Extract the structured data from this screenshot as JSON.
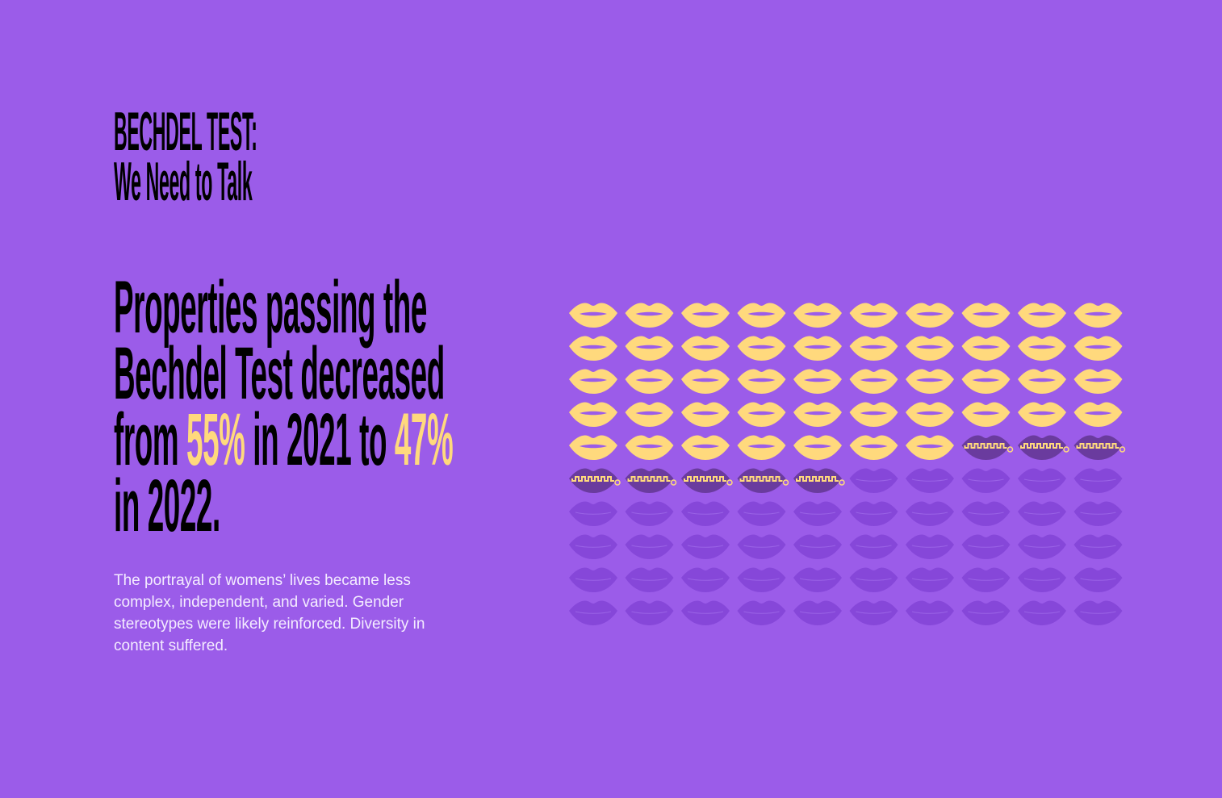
{
  "title": {
    "line1": "BECHDEL TEST:",
    "line2": "We Need to Talk"
  },
  "headline": {
    "line1": "Properties passing the",
    "line2": "Bechdel Test decreased",
    "line3_a": "from ",
    "line3_pct1": "55%",
    "line3_b": " in 2021 to ",
    "line3_pct2": "47%",
    "line4": "in 2022."
  },
  "body": "The portrayal of womens’ lives became less complex, independent, and varied. Gender stereotypes were likely reinforced. Diversity in content suffered.",
  "colors": {
    "background": "#9b5ce9",
    "highlight": "#ffd97d",
    "zipped": "#6a3b9e",
    "faded": "#8647d9"
  },
  "chart_data": {
    "type": "waffle",
    "rows": 10,
    "columns": 10,
    "total": 100,
    "segments": [
      {
        "value": 47,
        "icon": "open-lips",
        "color": "#ffd97d"
      },
      {
        "value": 8,
        "icon": "zipped-lips",
        "color": "#6a3b9e"
      },
      {
        "value": 45,
        "icon": "faded-lips",
        "color": "#8647d9"
      }
    ]
  }
}
